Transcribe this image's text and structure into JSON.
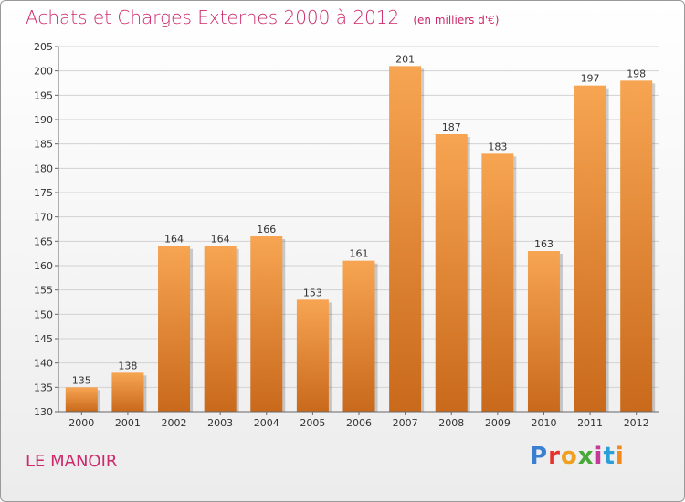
{
  "header": {
    "title": "Achats et Charges Externes 2000 à 2012",
    "subtitle": "(en milliers d'€)"
  },
  "footer": {
    "place": "LE MANOIR",
    "logo_text": "Proxiti",
    "logo_colors": [
      "#3a7fd0",
      "#e8302a",
      "#f0a020",
      "#49a83a",
      "#c33a9a",
      "#2b9fd8",
      "#f08a1c"
    ]
  },
  "colors": {
    "bar_top": "#f7a552",
    "bar_bottom": "#c9691b",
    "accent": "#cc2a6a"
  },
  "chart_data": {
    "type": "bar",
    "categories": [
      "2000",
      "2001",
      "2002",
      "2003",
      "2004",
      "2005",
      "2006",
      "2007",
      "2008",
      "2009",
      "2010",
      "2011",
      "2012"
    ],
    "values": [
      135,
      138,
      164,
      164,
      166,
      153,
      161,
      201,
      187,
      183,
      163,
      197,
      198
    ],
    "title": "Achats et Charges Externes 2000 à 2012",
    "ylim": [
      130,
      205
    ],
    "yticks": [
      130,
      135,
      140,
      145,
      150,
      155,
      160,
      165,
      170,
      175,
      180,
      185,
      190,
      195,
      200,
      205
    ],
    "grid": true,
    "data_labels": true
  }
}
